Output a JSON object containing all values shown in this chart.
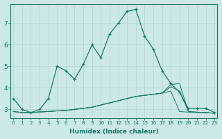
{
  "title": "",
  "xlabel": "Humidex (Indice chaleur)",
  "ylabel": "",
  "background_color": "#cce8e8",
  "line_color": "#1a7a6a",
  "grid_color": "#b8d8d8",
  "x_ticks": [
    0,
    1,
    2,
    3,
    4,
    5,
    6,
    7,
    8,
    9,
    10,
    11,
    12,
    13,
    14,
    15,
    16,
    17,
    18,
    19,
    20,
    21,
    22,
    23
  ],
  "y_ticks": [
    3,
    4,
    5,
    6,
    7
  ],
  "ylim": [
    2.6,
    7.9
  ],
  "xlim": [
    -0.3,
    23.3
  ],
  "series0": [
    3.5,
    3.0,
    2.85,
    3.0,
    3.5,
    5.0,
    4.8,
    4.4,
    5.1,
    6.0,
    5.4,
    6.5,
    7.0,
    7.55,
    7.65,
    6.4,
    5.8,
    4.8,
    4.2,
    3.8,
    3.05,
    3.05,
    3.05,
    2.85
  ],
  "series1": [
    2.9,
    2.85,
    2.85,
    2.88,
    2.9,
    2.93,
    2.95,
    3.0,
    3.05,
    3.1,
    3.2,
    3.3,
    3.4,
    3.5,
    3.6,
    3.65,
    3.7,
    3.75,
    3.85,
    2.9,
    2.87,
    2.85,
    2.85,
    2.82
  ],
  "series2": [
    2.9,
    2.85,
    2.85,
    2.88,
    2.9,
    2.93,
    2.95,
    3.0,
    3.05,
    3.1,
    3.2,
    3.3,
    3.4,
    3.5,
    3.6,
    3.65,
    3.7,
    3.75,
    4.05,
    3.85,
    2.9,
    2.87,
    2.85,
    2.82
  ],
  "series3": [
    2.9,
    2.85,
    2.85,
    2.88,
    2.9,
    2.93,
    2.95,
    3.0,
    3.05,
    3.1,
    3.2,
    3.3,
    3.4,
    3.5,
    3.6,
    3.65,
    3.7,
    3.75,
    4.15,
    4.2,
    2.9,
    2.87,
    2.85,
    2.82
  ]
}
